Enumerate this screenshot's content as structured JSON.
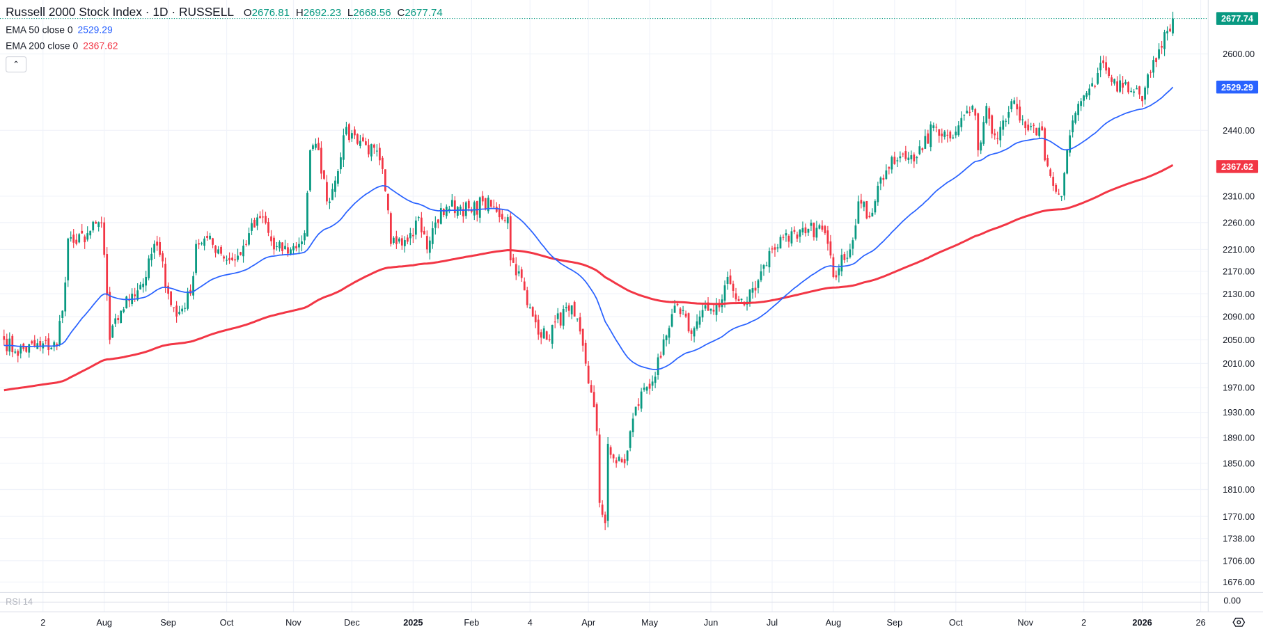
{
  "header": {
    "title": "Russell 2000 Stock Index · 1D · RUSSELL",
    "open_label": "O",
    "open": "2676.81",
    "high_label": "H",
    "high": "2692.23",
    "low_label": "L",
    "low": "2668.56",
    "close_label": "C",
    "close": "2677.74"
  },
  "indicators": [
    {
      "label": "EMA 50 close 0",
      "value": "2529.29",
      "color": "#2962ff"
    },
    {
      "label": "EMA 200 close 0",
      "value": "2367.62",
      "color": "#f23645"
    }
  ],
  "rsi": {
    "label": "RSI 14",
    "value": "0.00"
  },
  "colors": {
    "up": "#089981",
    "down": "#f23645",
    "ema50": "#2962ff",
    "ema200": "#f23645",
    "grid": "#f0f3fa"
  },
  "chart_data": {
    "type": "candlestick",
    "title": "Russell 2000 Stock Index · 1D · RUSSELL",
    "scale": "log",
    "bar_count": 421,
    "close_keypoints": [
      [
        0,
        2050
      ],
      [
        4,
        2030
      ],
      [
        13,
        2040
      ],
      [
        19,
        2040
      ],
      [
        22,
        2150
      ],
      [
        23,
        2230
      ],
      [
        26,
        2220
      ],
      [
        30,
        2240
      ],
      [
        35,
        2260
      ],
      [
        36,
        2200
      ],
      [
        38,
        2050
      ],
      [
        42,
        2100
      ],
      [
        46,
        2130
      ],
      [
        51,
        2160
      ],
      [
        54,
        2220
      ],
      [
        56,
        2200
      ],
      [
        59,
        2130
      ],
      [
        62,
        2090
      ],
      [
        67,
        2130
      ],
      [
        69,
        2220
      ],
      [
        72,
        2230
      ],
      [
        77,
        2210
      ],
      [
        81,
        2190
      ],
      [
        85,
        2200
      ],
      [
        88,
        2240
      ],
      [
        93,
        2270
      ],
      [
        97,
        2210
      ],
      [
        103,
        2210
      ],
      [
        106,
        2220
      ],
      [
        108,
        2240
      ],
      [
        110,
        2400
      ],
      [
        113,
        2400
      ],
      [
        116,
        2300
      ],
      [
        119,
        2340
      ],
      [
        122,
        2430
      ],
      [
        126,
        2430
      ],
      [
        130,
        2410
      ],
      [
        135,
        2380
      ],
      [
        137,
        2320
      ],
      [
        139,
        2220
      ],
      [
        142,
        2230
      ],
      [
        146,
        2240
      ],
      [
        149,
        2270
      ],
      [
        152,
        2210
      ],
      [
        155,
        2260
      ],
      [
        159,
        2290
      ],
      [
        164,
        2290
      ],
      [
        168,
        2280
      ],
      [
        172,
        2300
      ],
      [
        177,
        2280
      ],
      [
        181,
        2270
      ],
      [
        182,
        2190
      ],
      [
        185,
        2170
      ],
      [
        188,
        2110
      ],
      [
        191,
        2080
      ],
      [
        195,
        2050
      ],
      [
        198,
        2080
      ],
      [
        203,
        2100
      ],
      [
        205,
        2090
      ],
      [
        208,
        2040
      ],
      [
        213,
        1900
      ],
      [
        214,
        1790
      ],
      [
        216,
        1760
      ],
      [
        217,
        1880
      ],
      [
        220,
        1850
      ],
      [
        223,
        1850
      ],
      [
        226,
        1920
      ],
      [
        230,
        1970
      ],
      [
        233,
        1980
      ],
      [
        236,
        2020
      ],
      [
        239,
        2070
      ],
      [
        242,
        2110
      ],
      [
        245,
        2090
      ],
      [
        247,
        2060
      ],
      [
        250,
        2090
      ],
      [
        253,
        2100
      ],
      [
        258,
        2120
      ],
      [
        260,
        2160
      ],
      [
        263,
        2120
      ],
      [
        266,
        2110
      ],
      [
        269,
        2140
      ],
      [
        272,
        2170
      ],
      [
        276,
        2210
      ],
      [
        281,
        2240
      ],
      [
        285,
        2230
      ],
      [
        288,
        2240
      ],
      [
        292,
        2250
      ],
      [
        295,
        2240
      ],
      [
        298,
        2160
      ],
      [
        301,
        2200
      ],
      [
        304,
        2210
      ],
      [
        307,
        2300
      ],
      [
        311,
        2270
      ],
      [
        314,
        2330
      ],
      [
        317,
        2360
      ],
      [
        321,
        2380
      ],
      [
        326,
        2390
      ],
      [
        330,
        2400
      ],
      [
        334,
        2450
      ],
      [
        339,
        2430
      ],
      [
        343,
        2450
      ],
      [
        346,
        2480
      ],
      [
        349,
        2470
      ],
      [
        350,
        2400
      ],
      [
        353,
        2490
      ],
      [
        356,
        2430
      ],
      [
        359,
        2460
      ],
      [
        362,
        2500
      ],
      [
        365,
        2460
      ],
      [
        368,
        2440
      ],
      [
        371,
        2430
      ],
      [
        373,
        2440
      ],
      [
        374,
        2380
      ],
      [
        377,
        2330
      ],
      [
        380,
        2310
      ],
      [
        382,
        2400
      ],
      [
        384,
        2460
      ],
      [
        387,
        2500
      ],
      [
        392,
        2530
      ],
      [
        395,
        2580
      ],
      [
        398,
        2540
      ],
      [
        400,
        2520
      ],
      [
        403,
        2540
      ],
      [
        406,
        2520
      ],
      [
        409,
        2500
      ],
      [
        412,
        2560
      ],
      [
        415,
        2610
      ],
      [
        418,
        2650
      ],
      [
        420,
        2677.74
      ]
    ],
    "ema50_start": 2040,
    "ema200_start": 1965,
    "y_ticks": [
      2600,
      2440,
      2310,
      2260,
      2210,
      2170,
      2130,
      2090,
      2050,
      2010,
      1970,
      1930,
      1890,
      1850,
      1810,
      1770,
      1738,
      1706,
      1676
    ],
    "y_tick_labels": [
      "2600.00",
      "2440.00",
      "2310.00",
      "2260.00",
      "2210.00",
      "2170.00",
      "2130.00",
      "2090.00",
      "2050.00",
      "2010.00",
      "1970.00",
      "1930.00",
      "1890.00",
      "1850.00",
      "1810.00",
      "1770.00",
      "1738.00",
      "1706.00",
      "1676.00"
    ],
    "price_tags": [
      {
        "value": 2677.74,
        "label": "2677.74",
        "color": "#089981"
      },
      {
        "value": 2529.29,
        "label": "2529.29",
        "color": "#2962ff"
      },
      {
        "value": 2367.62,
        "label": "2367.62",
        "color": "#f23645"
      }
    ],
    "x_ticks": [
      {
        "bar": 14,
        "label": "2"
      },
      {
        "bar": 36,
        "label": "Aug"
      },
      {
        "bar": 59,
        "label": "Sep"
      },
      {
        "bar": 80,
        "label": "Oct"
      },
      {
        "bar": 104,
        "label": "Nov"
      },
      {
        "bar": 125,
        "label": "Dec"
      },
      {
        "bar": 147,
        "label": "2025",
        "bold": true
      },
      {
        "bar": 168,
        "label": "Feb"
      },
      {
        "bar": 189,
        "label": "4"
      },
      {
        "bar": 210,
        "label": "Apr"
      },
      {
        "bar": 232,
        "label": "May"
      },
      {
        "bar": 254,
        "label": "Jun"
      },
      {
        "bar": 276,
        "label": "Jul"
      },
      {
        "bar": 298,
        "label": "Aug"
      },
      {
        "bar": 320,
        "label": "Sep"
      },
      {
        "bar": 342,
        "label": "Oct"
      },
      {
        "bar": 367,
        "label": "Nov"
      },
      {
        "bar": 388,
        "label": "2"
      },
      {
        "bar": 409,
        "label": "2026",
        "bold": true
      },
      {
        "bar": 430,
        "label": "26"
      }
    ]
  }
}
